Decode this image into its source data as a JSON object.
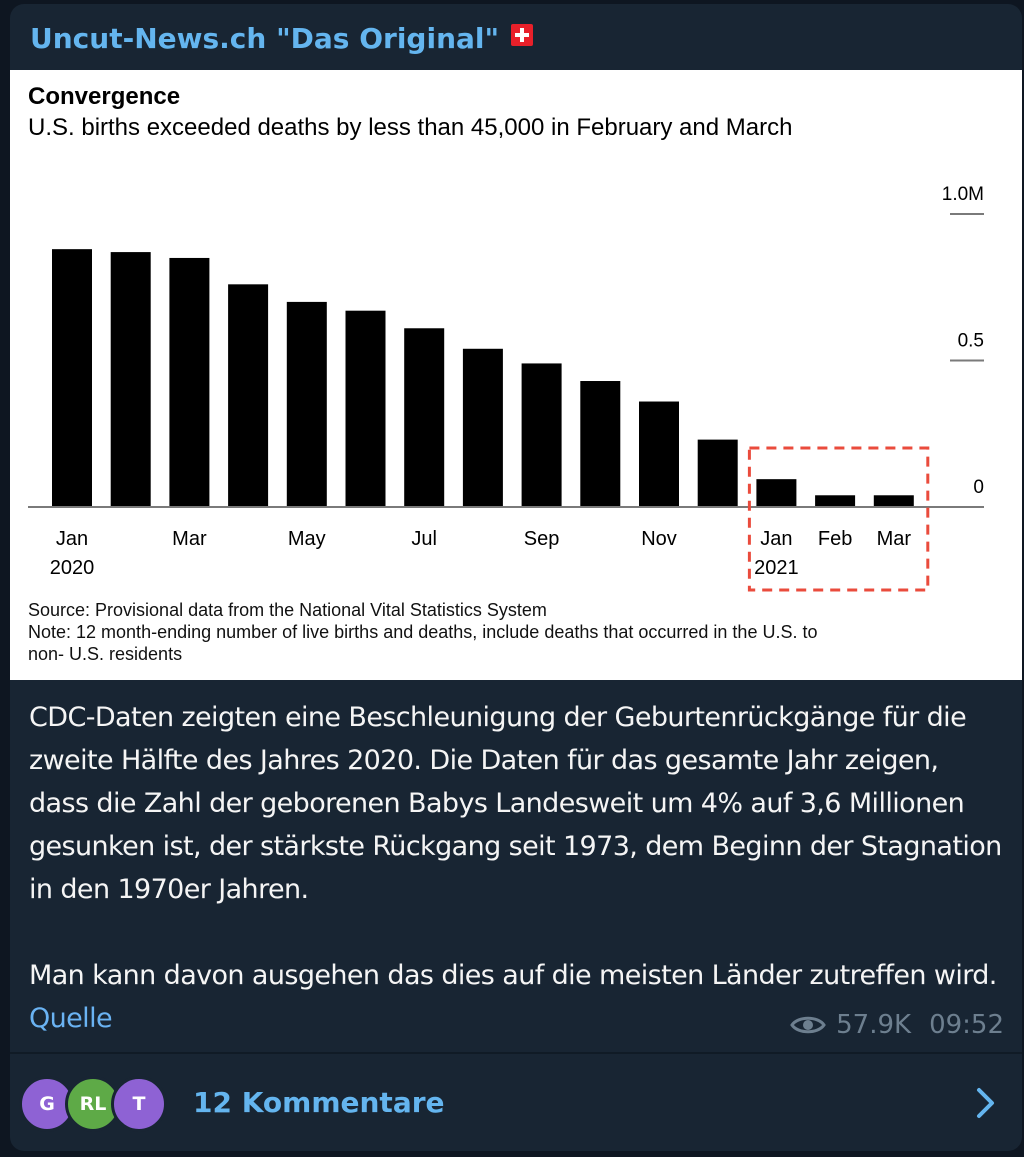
{
  "channel": {
    "title": "Uncut-News.ch \"Das Original\"",
    "flag_icon": "swiss-flag-icon"
  },
  "chart_data": {
    "type": "bar",
    "title": "Convergence",
    "subtitle": "U.S. births exceeded deaths by less than 45,000 in February and March",
    "categories": [
      "Jan 2020",
      "Feb 2020",
      "Mar 2020",
      "Apr 2020",
      "May 2020",
      "Jun 2020",
      "Jul 2020",
      "Aug 2020",
      "Sep 2020",
      "Oct 2020",
      "Nov 2020",
      "Dec 2020",
      "Jan 2021",
      "Feb 2021",
      "Mar 2021"
    ],
    "values": [
      0.88,
      0.87,
      0.85,
      0.76,
      0.7,
      0.67,
      0.61,
      0.54,
      0.49,
      0.43,
      0.36,
      0.23,
      0.095,
      0.04,
      0.04
    ],
    "ylim": [
      0,
      1.0
    ],
    "y_ticks": [
      {
        "value": 1.0,
        "label": "1.0M"
      },
      {
        "value": 0.5,
        "label": "0.5"
      },
      {
        "value": 0,
        "label": "0"
      }
    ],
    "x_tick_labels": [
      {
        "index": 0,
        "month": "Jan",
        "year": "2020"
      },
      {
        "index": 2,
        "month": "Mar",
        "year": ""
      },
      {
        "index": 4,
        "month": "May",
        "year": ""
      },
      {
        "index": 6,
        "month": "Jul",
        "year": ""
      },
      {
        "index": 8,
        "month": "Sep",
        "year": ""
      },
      {
        "index": 10,
        "month": "Nov",
        "year": ""
      },
      {
        "index": 12,
        "month": "Jan",
        "year": "2021"
      },
      {
        "index": 13,
        "month": "Feb",
        "year": ""
      },
      {
        "index": 14,
        "month": "Mar",
        "year": ""
      }
    ],
    "highlight": {
      "from_index": 12,
      "to_index": 14,
      "color": "#ea4b3c",
      "style": "dashed"
    },
    "bar_color": "#000000",
    "source": "Source: Provisional data from the National Vital Statistics System",
    "note_line1": "Note: 12 month-ending number of live births and deaths, include deaths that occurred in the U.S. to",
    "note_line2": "non- U.S. residents",
    "grid": false
  },
  "message": {
    "paragraph1": "CDC-Daten zeigten eine Beschleunigung der Geburtenrückgänge für die zweite Hälfte des Jahres 2020. Die Daten für das gesamte Jahr zeigen, dass die Zahl der geborenen Babys Landesweit um 4% auf 3,6 Millionen gesunken ist, der stärkste Rückgang seit 1973, dem Beginn der Stagnation in den 1970er Jahren.",
    "paragraph2": "Man kann davon ausgehen das dies auf die meisten Länder zutreffen wird.",
    "link_label": "Quelle"
  },
  "meta": {
    "views": "57.9K",
    "time": "09:52",
    "views_icon": "eye-icon"
  },
  "comments": {
    "avatars": [
      "G",
      "RL",
      "T"
    ],
    "label": "12 Kommentare",
    "chevron_icon": "chevron-right-icon"
  },
  "colors": {
    "background": "#0e1621",
    "card": "#182533",
    "accent": "#64b5ef",
    "link": "#6ab3f3",
    "text": "#f5f5f5",
    "meta": "#6d7f8f"
  }
}
